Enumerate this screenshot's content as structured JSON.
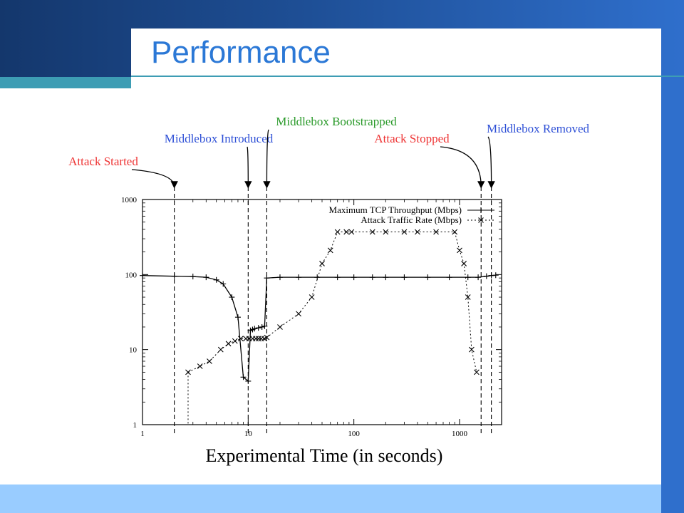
{
  "slide": {
    "title": "Performance",
    "colors": {
      "brand_dark": "#14376c",
      "brand": "#2f6fcc",
      "accent": "#3d9db4",
      "light": "#99ccff",
      "title": "#2b78d6"
    }
  },
  "chart_data": {
    "type": "line",
    "xlabel": "Experimental Time (in seconds)",
    "ylabel": "",
    "xscale": "log",
    "yscale": "log",
    "xlim": [
      1,
      2500
    ],
    "ylim": [
      1,
      1000
    ],
    "x_ticks": [
      {
        "value": 1,
        "label": "1"
      },
      {
        "value": 10,
        "label": "10"
      },
      {
        "value": 100,
        "label": "100"
      },
      {
        "value": 1000,
        "label": "1000"
      }
    ],
    "y_ticks": [
      {
        "value": 1,
        "label": "1"
      },
      {
        "value": 10,
        "label": "10"
      },
      {
        "value": 100,
        "label": "100"
      },
      {
        "value": 1000,
        "label": "1000"
      }
    ],
    "legend_position": "top-right",
    "series": [
      {
        "name": "Maximum TCP Throughput (Mbps)",
        "style": "solid",
        "marker": "+",
        "points": [
          [
            1,
            97
          ],
          [
            2,
            95
          ],
          [
            3,
            94
          ],
          [
            4,
            92
          ],
          [
            5,
            85
          ],
          [
            5.8,
            75
          ],
          [
            7,
            50
          ],
          [
            8,
            27
          ],
          [
            9,
            4.3
          ],
          [
            10,
            3.8
          ],
          [
            10.5,
            18
          ],
          [
            11,
            18.5
          ],
          [
            11.5,
            19
          ],
          [
            12.5,
            19.5
          ],
          [
            13.5,
            20
          ],
          [
            14.3,
            20.5
          ],
          [
            15,
            90
          ],
          [
            20,
            92
          ],
          [
            30,
            92
          ],
          [
            45,
            92
          ],
          [
            70,
            92
          ],
          [
            100,
            92
          ],
          [
            150,
            92
          ],
          [
            200,
            92
          ],
          [
            300,
            92
          ],
          [
            500,
            92
          ],
          [
            800,
            92
          ],
          [
            1200,
            92
          ],
          [
            1500,
            92
          ],
          [
            1800,
            95
          ],
          [
            2000,
            97
          ],
          [
            2200,
            98
          ]
        ]
      },
      {
        "name": "Attack Traffic Rate (Mbps)",
        "style": "dotted",
        "marker": "x",
        "points": [
          [
            2.7,
            5
          ],
          [
            3.5,
            6
          ],
          [
            4.3,
            7
          ],
          [
            5.5,
            10
          ],
          [
            6.5,
            12
          ],
          [
            7.5,
            13
          ],
          [
            8.5,
            14
          ],
          [
            9.5,
            14
          ],
          [
            10.2,
            14
          ],
          [
            11,
            14
          ],
          [
            11.8,
            14
          ],
          [
            12.5,
            14
          ],
          [
            13.3,
            14
          ],
          [
            14.2,
            14
          ],
          [
            15,
            14.5
          ],
          [
            20,
            20
          ],
          [
            30,
            30
          ],
          [
            40,
            50
          ],
          [
            50,
            140
          ],
          [
            60,
            210
          ],
          [
            70,
            370
          ],
          [
            85,
            370
          ],
          [
            95,
            370
          ],
          [
            150,
            370
          ],
          [
            200,
            370
          ],
          [
            300,
            370
          ],
          [
            400,
            370
          ],
          [
            600,
            370
          ],
          [
            900,
            370
          ],
          [
            1000,
            210
          ],
          [
            1100,
            140
          ],
          [
            1200,
            50
          ],
          [
            1300,
            10
          ],
          [
            1450,
            5
          ]
        ]
      }
    ],
    "annotations": [
      {
        "text": "Attack Started",
        "x": 2,
        "color": "#ee3333"
      },
      {
        "text": "Middlebox Introduced",
        "x": 10,
        "color": "#2d4fd6"
      },
      {
        "text": "Middlebox Bootstrapped",
        "x": 15,
        "color": "#2a9a2a"
      },
      {
        "text": "Attack Stopped",
        "x": 1600,
        "color": "#ee3333"
      },
      {
        "text": "Middlebox Removed",
        "x": 2000,
        "color": "#2d4fd6"
      }
    ]
  }
}
